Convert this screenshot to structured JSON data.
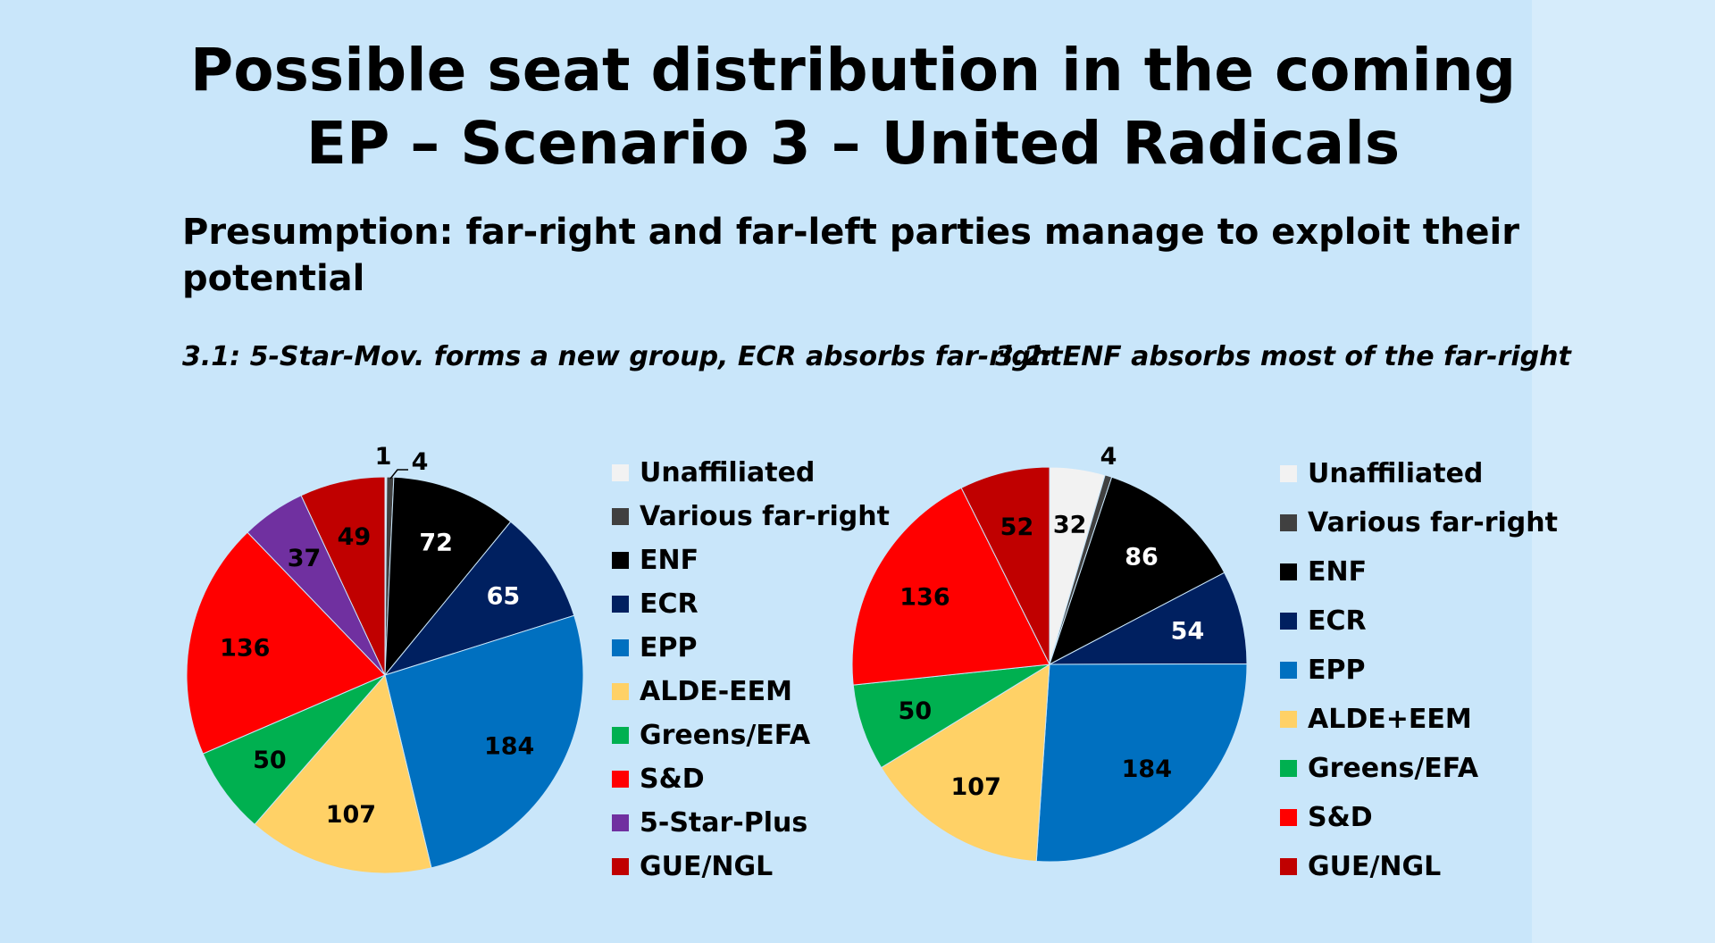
{
  "title_line1": "Possible seat distribution in the coming",
  "title_line2": "EP – Scenario 3 – United Radicals",
  "subtitle": "Presumption: far-right and far-left parties manage to exploit their potential",
  "chart_data": [
    {
      "type": "pie",
      "title": "3.1: 5-Star-Mov. forms a new group, ECR absorbs far-right",
      "slices": [
        {
          "label": "Unaffiliated",
          "value": 1,
          "color": "#f2f2f2",
          "label_color": "#000000"
        },
        {
          "label": "Various far-right",
          "value": 4,
          "color": "#404040",
          "label_color": "#000000"
        },
        {
          "label": "ENF",
          "value": 72,
          "color": "#000000",
          "label_color": "#ffffff"
        },
        {
          "label": "ECR",
          "value": 65,
          "color": "#002060",
          "label_color": "#ffffff"
        },
        {
          "label": "EPP",
          "value": 184,
          "color": "#0070c0",
          "label_color": "#000000"
        },
        {
          "label": "ALDE-EEM",
          "value": 107,
          "color": "#ffd166",
          "label_color": "#000000"
        },
        {
          "label": "Greens/EFA",
          "value": 50,
          "color": "#00b050",
          "label_color": "#000000"
        },
        {
          "label": "S&D",
          "value": 136,
          "color": "#ff0000",
          "label_color": "#000000"
        },
        {
          "label": "5-Star-Plus",
          "value": 37,
          "color": "#7030a0",
          "label_color": "#000000"
        },
        {
          "label": "GUE/NGL",
          "value": 49,
          "color": "#c00000",
          "label_color": "#000000"
        }
      ]
    },
    {
      "type": "pie",
      "title": "3.2: ENF absorbs most of the far-right",
      "slices": [
        {
          "label": "Unaffiliated",
          "value": 32,
          "color": "#f2f2f2",
          "label_color": "#000000"
        },
        {
          "label": "Various far-right",
          "value": 4,
          "color": "#404040",
          "label_color": "#000000"
        },
        {
          "label": "ENF",
          "value": 86,
          "color": "#000000",
          "label_color": "#ffffff"
        },
        {
          "label": "ECR",
          "value": 54,
          "color": "#002060",
          "label_color": "#ffffff"
        },
        {
          "label": "EPP",
          "value": 184,
          "color": "#0070c0",
          "label_color": "#000000"
        },
        {
          "label": "ALDE+EEM",
          "value": 107,
          "color": "#ffd166",
          "label_color": "#000000"
        },
        {
          "label": "Greens/EFA",
          "value": 50,
          "color": "#00b050",
          "label_color": "#000000"
        },
        {
          "label": "S&D",
          "value": 136,
          "color": "#ff0000",
          "label_color": "#000000"
        },
        {
          "label": "GUE/NGL",
          "value": 52,
          "color": "#c00000",
          "label_color": "#000000"
        }
      ]
    }
  ]
}
